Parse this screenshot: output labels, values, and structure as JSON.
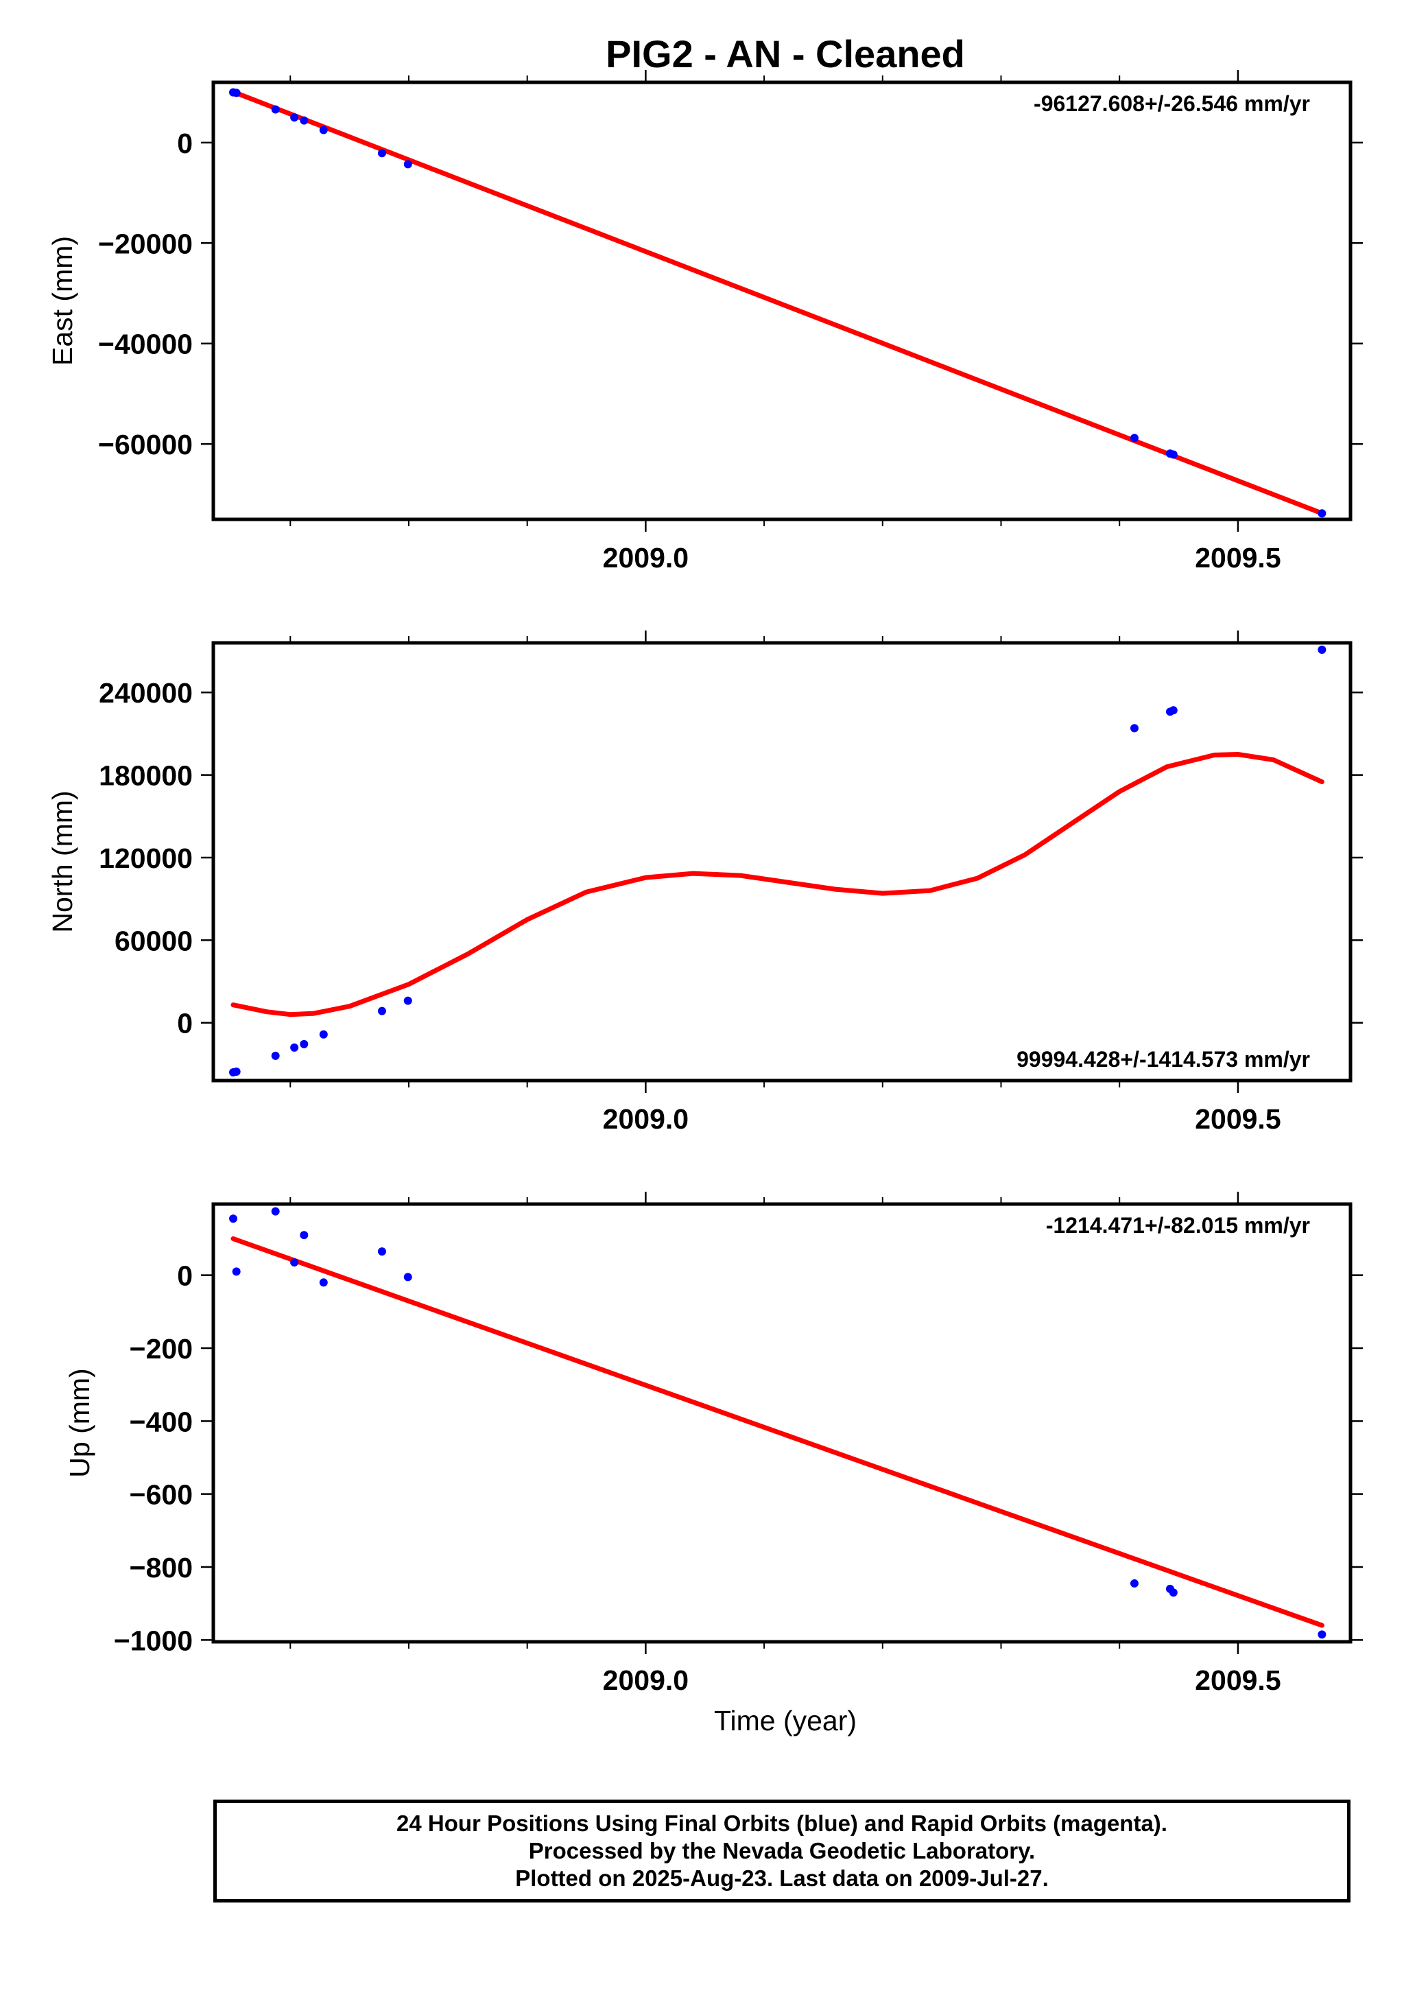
{
  "title": "PIG2  - AN - Cleaned",
  "colors": {
    "fit_line": "#ff0000",
    "final_orbits": "#0000ff",
    "rapid_orbits": "#ff00ff",
    "frame": "#000000"
  },
  "x_axis": {
    "label": "Time (year)",
    "range": [
      2008.635,
      2009.595
    ],
    "major_ticks": [
      2009.0,
      2009.5
    ],
    "major_tick_labels": [
      "2009.0",
      "2009.5"
    ],
    "minor_ticks": [
      2008.7,
      2008.8,
      2008.9,
      2009.1,
      2009.2,
      2009.3,
      2009.4
    ]
  },
  "footer": {
    "lines": [
      "24 Hour Positions Using Final Orbits (blue) and Rapid Orbits (magenta).",
      "Processed by the Nevada Geodetic Laboratory.",
      "Plotted on 2025-Aug-23. Last data on 2009-Jul-27."
    ]
  },
  "chart_data": [
    {
      "type": "scatter",
      "panel": "east",
      "ylabel": "East (mm)",
      "ylim": [
        -75000,
        12000
      ],
      "y_ticks": [
        0,
        -20000,
        -40000,
        -60000
      ],
      "y_tick_labels": [
        "0",
        "−20000",
        "−40000",
        "−60000"
      ],
      "rate_label": "-96127.608+/-26.546 mm/yr",
      "rate_label_position": "top-right",
      "series": [
        {
          "name": "Final Orbits",
          "color": "#0000ff",
          "points": [
            [
              2008.6518,
              10000
            ],
            [
              2008.6545,
              9900
            ],
            [
              2008.6875,
              6600
            ],
            [
              2008.7034,
              5000
            ],
            [
              2008.7116,
              4400
            ],
            [
              2008.7281,
              2500
            ],
            [
              2008.7774,
              -2100
            ],
            [
              2008.7993,
              -4300
            ],
            [
              2009.4126,
              -58800
            ],
            [
              2009.4427,
              -61900
            ],
            [
              2009.4455,
              -62100
            ],
            [
              2009.5709,
              -73800
            ]
          ]
        }
      ],
      "fit": {
        "type": "line",
        "color": "#ff0000",
        "points": [
          [
            2008.6518,
            10100
          ],
          [
            2009.5709,
            -73800
          ]
        ]
      }
    },
    {
      "type": "scatter",
      "panel": "north",
      "ylabel": "North (mm)",
      "ylim": [
        -42000,
        276000
      ],
      "y_ticks": [
        0,
        60000,
        120000,
        180000,
        240000
      ],
      "y_tick_labels": [
        "0",
        "60000",
        "120000",
        "180000",
        "240000"
      ],
      "rate_label": "99994.428+/-1414.573 mm/yr",
      "rate_label_position": "bottom-right",
      "series": [
        {
          "name": "Final Orbits",
          "color": "#0000ff",
          "points": [
            [
              2008.6518,
              -36000
            ],
            [
              2008.6545,
              -35500
            ],
            [
              2008.6875,
              -24000
            ],
            [
              2008.7034,
              -18000
            ],
            [
              2008.7116,
              -15500
            ],
            [
              2008.7281,
              -8500
            ],
            [
              2008.7774,
              8500
            ],
            [
              2008.7993,
              16000
            ],
            [
              2009.4126,
              214000
            ],
            [
              2009.4427,
              226000
            ],
            [
              2009.4455,
              227000
            ],
            [
              2009.5709,
              271000
            ]
          ]
        }
      ],
      "fit": {
        "type": "curve",
        "color": "#ff0000",
        "points": [
          [
            2008.6518,
            13000
          ],
          [
            2008.68,
            8000
          ],
          [
            2008.7,
            6000
          ],
          [
            2008.72,
            6800
          ],
          [
            2008.75,
            12000
          ],
          [
            2008.8,
            28000
          ],
          [
            2008.85,
            50000
          ],
          [
            2008.9,
            75000
          ],
          [
            2008.95,
            95000
          ],
          [
            2009.0,
            105500
          ],
          [
            2009.04,
            108500
          ],
          [
            2009.08,
            107000
          ],
          [
            2009.12,
            102000
          ],
          [
            2009.16,
            97000
          ],
          [
            2009.2,
            94000
          ],
          [
            2009.24,
            96000
          ],
          [
            2009.28,
            105000
          ],
          [
            2009.32,
            122000
          ],
          [
            2009.36,
            145000
          ],
          [
            2009.4,
            168000
          ],
          [
            2009.44,
            186000
          ],
          [
            2009.48,
            194500
          ],
          [
            2009.5,
            195000
          ],
          [
            2009.53,
            191000
          ],
          [
            2009.5709,
            175000
          ]
        ]
      }
    },
    {
      "type": "scatter",
      "panel": "up",
      "ylabel": "Up (mm)",
      "ylim": [
        -1005,
        195
      ],
      "y_ticks": [
        0,
        -200,
        -400,
        -600,
        -800,
        -1000
      ],
      "y_tick_labels": [
        "0",
        "−200",
        "−400",
        "−600",
        "−800",
        "−1000"
      ],
      "rate_label": "-1214.471+/-82.015 mm/yr",
      "rate_label_position": "top-right",
      "series": [
        {
          "name": "Final Orbits",
          "color": "#0000ff",
          "points": [
            [
              2008.6518,
              155
            ],
            [
              2008.6545,
              10
            ],
            [
              2008.6875,
              175
            ],
            [
              2008.7034,
              35
            ],
            [
              2008.7116,
              110
            ],
            [
              2008.7281,
              -20
            ],
            [
              2008.7774,
              65
            ],
            [
              2008.7993,
              -5
            ],
            [
              2009.4126,
              -845
            ],
            [
              2009.4427,
              -860
            ],
            [
              2009.4455,
              -870
            ],
            [
              2009.5709,
              -985
            ]
          ]
        }
      ],
      "fit": {
        "type": "line",
        "color": "#ff0000",
        "points": [
          [
            2008.6518,
            100
          ],
          [
            2009.5709,
            -960
          ]
        ]
      }
    }
  ]
}
